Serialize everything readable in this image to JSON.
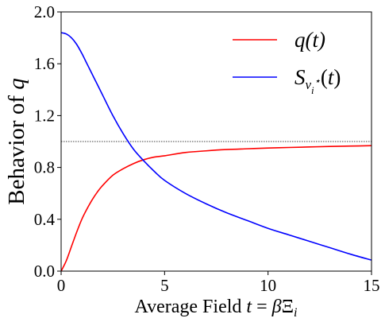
{
  "chart_data": {
    "type": "line",
    "xlabel": "Average Field t = βΞᵢ",
    "ylabel": "Behavior of q",
    "xlim": [
      0,
      15
    ],
    "ylim": [
      0,
      2.0
    ],
    "xticks": [
      0,
      5,
      10,
      15
    ],
    "yticks": [
      0.0,
      0.4,
      0.8,
      1.2,
      1.6,
      2.0
    ],
    "xtick_labels": [
      "0",
      "5",
      "10",
      "15"
    ],
    "ytick_labels": [
      "0.0",
      "0.4",
      "0.8",
      "1.2",
      "1.6",
      "2.0"
    ],
    "grid": false,
    "legend_position": "top-right",
    "reference_line": {
      "y": 1.0,
      "style": "dotted",
      "color": "#000000"
    },
    "series": [
      {
        "name": "q(t)",
        "color": "#ff0000",
        "x": [
          0,
          0.25,
          0.5,
          0.75,
          1.0,
          1.25,
          1.5,
          1.75,
          2.0,
          2.5,
          3.0,
          3.5,
          4.0,
          4.5,
          5.0,
          6.0,
          7.0,
          8.0,
          9.0,
          10.0,
          11.0,
          12.0,
          13.0,
          14.0,
          15.0
        ],
        "y": [
          0.0,
          0.08,
          0.19,
          0.3,
          0.4,
          0.48,
          0.55,
          0.61,
          0.66,
          0.74,
          0.79,
          0.83,
          0.86,
          0.88,
          0.89,
          0.915,
          0.928,
          0.938,
          0.944,
          0.95,
          0.954,
          0.958,
          0.962,
          0.965,
          0.968
        ]
      },
      {
        "name": "S_{ν_i^⋆}(t)",
        "color": "#0000ff",
        "x": [
          0,
          0.25,
          0.5,
          0.75,
          1.0,
          1.25,
          1.5,
          1.75,
          2.0,
          2.5,
          3.0,
          3.5,
          4.0,
          4.5,
          5.0,
          6.0,
          7.0,
          8.0,
          9.0,
          10.0,
          11.0,
          12.0,
          13.0,
          14.0,
          15.0
        ],
        "y": [
          1.84,
          1.83,
          1.8,
          1.75,
          1.68,
          1.6,
          1.52,
          1.44,
          1.36,
          1.2,
          1.06,
          0.94,
          0.85,
          0.77,
          0.7,
          0.6,
          0.52,
          0.45,
          0.39,
          0.33,
          0.28,
          0.23,
          0.18,
          0.13,
          0.085
        ]
      }
    ]
  }
}
